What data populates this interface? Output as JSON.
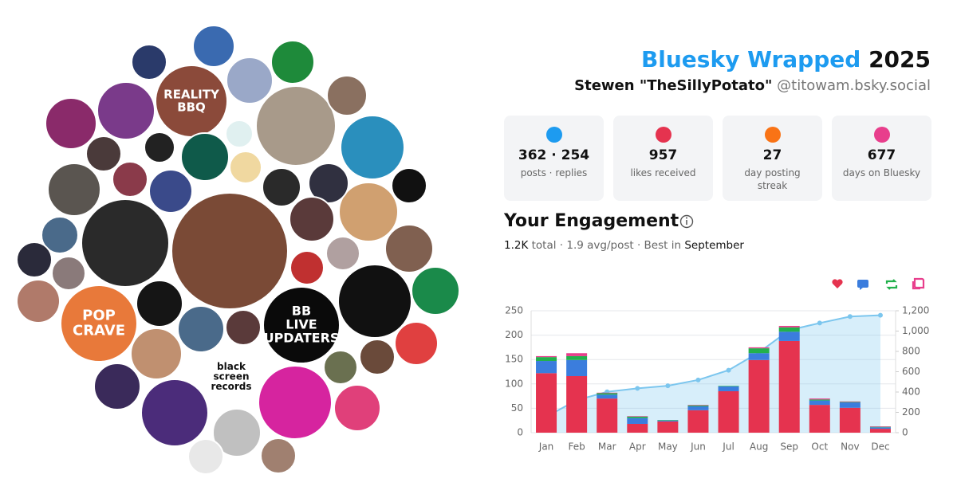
{
  "header": {
    "title": "Bluesky Wrapped",
    "year": "2025",
    "name": "Stewen \"TheSillyPotato\"",
    "handle": "@titowam.bsky.social"
  },
  "avatars": [
    [
      "REALITY",
      "BBQ"
    ],
    [
      "POP",
      "CRAVE"
    ],
    [
      "BB",
      "LIVE",
      "UPDATERS"
    ],
    [
      "black",
      "screen",
      "records"
    ]
  ],
  "stats": [
    {
      "value": "362 · 254",
      "label": "posts · replies"
    },
    {
      "value": "957",
      "label": "likes received"
    },
    {
      "value": "27",
      "label": "day posting streak"
    },
    {
      "value": "677",
      "label": "days on Bluesky"
    }
  ],
  "chart_data": {
    "type": "bar",
    "stacked": true,
    "title": "Your Engagement",
    "subtitle": [
      "1.2K",
      "total · 1.9 avg/post · Best in",
      "September"
    ],
    "categories": [
      "Jan",
      "Feb",
      "Mar",
      "Apr",
      "May",
      "Jun",
      "Jul",
      "Aug",
      "Sep",
      "Oct",
      "Nov",
      "Dec"
    ],
    "series": [
      {
        "color": "#e5334f",
        "icon": "heart",
        "values": [
          122,
          116,
          70,
          18,
          23,
          46,
          85,
          149,
          188,
          57,
          51,
          8
        ]
      },
      {
        "color": "#3b7ddd",
        "icon": "reply",
        "values": [
          25,
          33,
          8,
          12,
          2,
          8,
          10,
          14,
          19,
          9,
          11,
          3
        ]
      },
      {
        "color": "#22b14c",
        "icon": "repost",
        "values": [
          8,
          8,
          3,
          3,
          1,
          2,
          1,
          10,
          9,
          2,
          1,
          1
        ]
      },
      {
        "color": "#e83e8c",
        "icon": "quote",
        "values": [
          2,
          6,
          1,
          1,
          0,
          1,
          0,
          2,
          3,
          2,
          1,
          1
        ]
      },
      {
        "type": "area",
        "axis": "y2",
        "color": "#7cc6ee",
        "values": [
          157,
          320,
          402,
          436,
          462,
          519,
          615,
          790,
          1009,
          1079,
          1143,
          1156
        ]
      }
    ],
    "ylim": [
      0,
      250
    ],
    "yticks": [
      0,
      50,
      100,
      150,
      200,
      250
    ],
    "y2lim": [
      0,
      1200
    ],
    "y2ticks": [
      0,
      200,
      400,
      600,
      800,
      {
        "value": 1000,
        "label": "1,000"
      },
      {
        "value": 1200,
        "label": "1,200"
      }
    ],
    "grid": true
  }
}
